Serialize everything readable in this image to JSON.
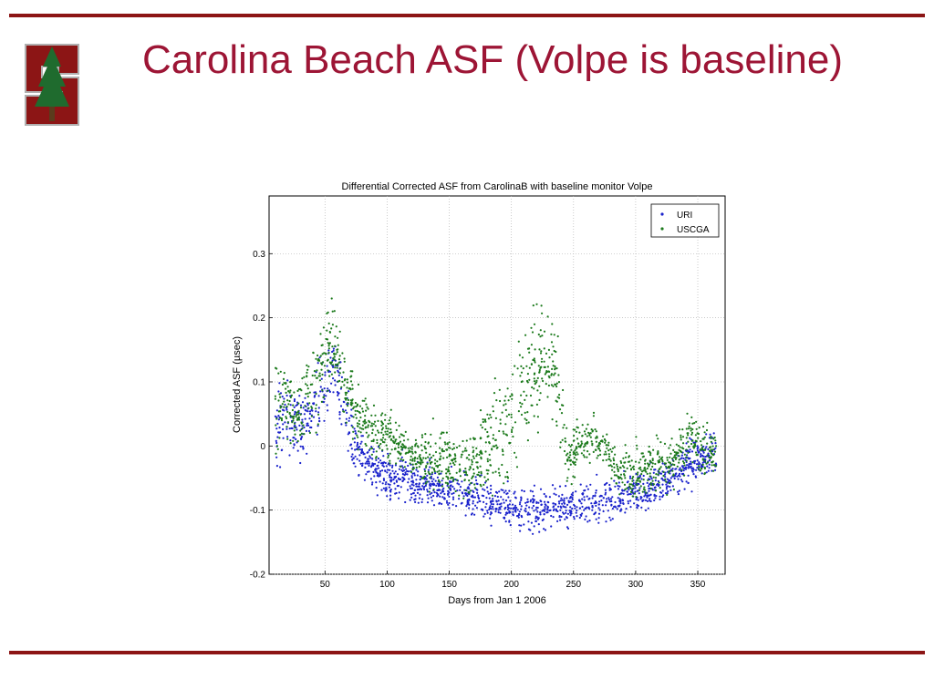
{
  "slide": {
    "title": "Carolina Beach ASF (Volpe is baseline)"
  },
  "colors": {
    "rule": "#8c1515",
    "title": "#9d1535",
    "uri": "#1a22cc",
    "uscga": "#1c7a1c"
  },
  "logo": {
    "icon": "stanford-tree-s-logo-icon"
  },
  "chart_data": {
    "type": "scatter",
    "title": "Differential Corrected ASF from CarolinaB with baseline monitor Volpe",
    "xlabel": "Days from Jan 1 2006",
    "ylabel": "Corrected ASF (µsec)",
    "xlim": [
      5,
      372
    ],
    "ylim": [
      -0.2,
      0.39
    ],
    "xticks": [
      50,
      100,
      150,
      200,
      250,
      300,
      350
    ],
    "yticks": [
      -0.2,
      -0.1,
      0,
      0.1,
      0.2,
      0.3
    ],
    "ytick_labels": [
      "-0.2",
      "-0.1",
      "0",
      "0.1",
      "0.2",
      "0.3"
    ],
    "grid": true,
    "legend_position": "top-right",
    "series": [
      {
        "name": "URI",
        "color": "#1a22cc",
        "x": [
          10,
          20,
          30,
          40,
          50,
          57,
          65,
          75,
          85,
          95,
          105,
          115,
          125,
          135,
          145,
          155,
          165,
          175,
          185,
          195,
          205,
          215,
          225,
          235,
          245,
          255,
          265,
          275,
          285,
          295,
          305,
          315,
          325,
          335,
          345,
          355,
          365
        ],
        "y": [
          0.03,
          0.04,
          0.03,
          0.05,
          0.1,
          0.13,
          0.05,
          -0.01,
          -0.03,
          -0.04,
          -0.05,
          -0.05,
          -0.06,
          -0.06,
          -0.07,
          -0.07,
          -0.08,
          -0.08,
          -0.09,
          -0.09,
          -0.1,
          -0.1,
          -0.1,
          -0.09,
          -0.1,
          -0.09,
          -0.09,
          -0.08,
          -0.08,
          -0.07,
          -0.07,
          -0.06,
          -0.05,
          -0.04,
          -0.02,
          -0.02,
          -0.01
        ],
        "spread": [
          0.06,
          0.05,
          0.05,
          0.05,
          0.06,
          0.06,
          0.05,
          0.04,
          0.03,
          0.03,
          0.03,
          0.03,
          0.03,
          0.03,
          0.03,
          0.03,
          0.03,
          0.03,
          0.03,
          0.03,
          0.03,
          0.04,
          0.03,
          0.03,
          0.03,
          0.03,
          0.03,
          0.03,
          0.03,
          0.03,
          0.03,
          0.03,
          0.03,
          0.03,
          0.04,
          0.03,
          0.04
        ]
      },
      {
        "name": "USCGA",
        "color": "#1c7a1c",
        "x": [
          10,
          20,
          30,
          40,
          50,
          57,
          65,
          75,
          85,
          95,
          105,
          115,
          125,
          135,
          145,
          155,
          165,
          175,
          185,
          195,
          205,
          215,
          225,
          235,
          245,
          255,
          265,
          275,
          285,
          295,
          305,
          315,
          325,
          335,
          345,
          355,
          365
        ],
        "y": [
          0.08,
          0.06,
          0.05,
          0.09,
          0.13,
          0.16,
          0.1,
          0.05,
          0.03,
          0.02,
          0.01,
          -0.01,
          -0.02,
          -0.02,
          -0.02,
          -0.02,
          -0.03,
          -0.02,
          0.0,
          0.02,
          0.06,
          0.12,
          0.14,
          0.12,
          -0.02,
          0.0,
          0.01,
          0.0,
          -0.04,
          -0.04,
          -0.04,
          -0.03,
          -0.03,
          -0.01,
          0.02,
          -0.01,
          -0.01
        ],
        "spread": [
          0.09,
          0.06,
          0.06,
          0.07,
          0.07,
          0.07,
          0.06,
          0.04,
          0.04,
          0.04,
          0.04,
          0.03,
          0.03,
          0.04,
          0.05,
          0.05,
          0.05,
          0.06,
          0.07,
          0.08,
          0.09,
          0.09,
          0.08,
          0.07,
          0.04,
          0.03,
          0.03,
          0.03,
          0.03,
          0.04,
          0.04,
          0.04,
          0.04,
          0.04,
          0.05,
          0.04,
          0.04
        ]
      }
    ]
  }
}
